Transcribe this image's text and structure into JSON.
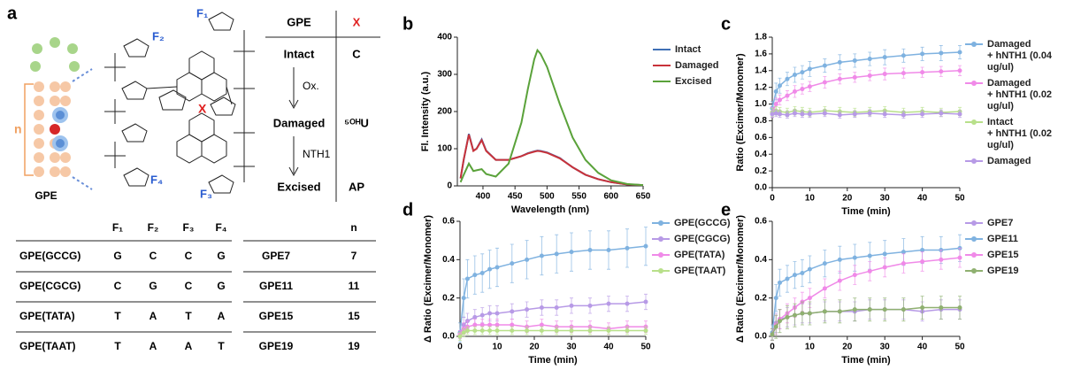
{
  "panel_labels": [
    "a",
    "b",
    "c",
    "d",
    "e"
  ],
  "panel_a": {
    "scheme_labels": {
      "gpe": "GPE",
      "n": "n",
      "f1": "F₁",
      "f2": "F₂",
      "f3": "F₃",
      "f4": "F₄",
      "x": "X"
    },
    "state_table": {
      "header": [
        "GPE",
        "X"
      ],
      "rows": [
        [
          "Intact",
          "C"
        ],
        [
          "Damaged",
          "⁵ᴼᴴU"
        ],
        [
          "Excised",
          "AP"
        ]
      ],
      "steps": [
        "Ox.",
        "NTH1"
      ]
    },
    "sequence_table": {
      "columns": [
        "F₁",
        "F₂",
        "F₃",
        "F₄"
      ],
      "rows": [
        {
          "label": "GPE(GCCG)",
          "cells": [
            "G",
            "C",
            "C",
            "G"
          ]
        },
        {
          "label": "GPE(CGCG)",
          "cells": [
            "C",
            "G",
            "C",
            "G"
          ]
        },
        {
          "label": "GPE(TATA)",
          "cells": [
            "T",
            "A",
            "T",
            "A"
          ]
        },
        {
          "label": "GPE(TAAT)",
          "cells": [
            "T",
            "A",
            "A",
            "T"
          ]
        }
      ]
    },
    "length_table": {
      "column": "n",
      "rows": [
        [
          "GPE7",
          7
        ],
        [
          "GPE11",
          11
        ],
        [
          "GPE15",
          15
        ],
        [
          "GPE19",
          19
        ]
      ]
    }
  },
  "chart_data": [
    {
      "type": "line",
      "x_label": "Wavelength (nm)",
      "y_label": "Fl. Intensity (a.u.)",
      "x": [
        365,
        370,
        378,
        385,
        390,
        398,
        405,
        420,
        440,
        460,
        470,
        480,
        485,
        490,
        500,
        520,
        540,
        560,
        580,
        600,
        625,
        650
      ],
      "xlim": [
        360,
        650
      ],
      "xticks": [
        400,
        450,
        500,
        550,
        600,
        650
      ],
      "ylim": [
        0,
        400
      ],
      "yticks": [
        0,
        100,
        200,
        300,
        400
      ],
      "series": [
        {
          "name": "Intact",
          "color": "#3f6fb5",
          "values": [
            20,
            70,
            140,
            95,
            100,
            125,
            95,
            70,
            70,
            80,
            88,
            93,
            95,
            94,
            90,
            75,
            50,
            30,
            18,
            10,
            4,
            2
          ]
        },
        {
          "name": "Damaged",
          "color": "#c8323a",
          "values": [
            20,
            72,
            138,
            94,
            100,
            123,
            94,
            70,
            70,
            80,
            87,
            92,
            94,
            93,
            89,
            74,
            50,
            30,
            18,
            10,
            4,
            2
          ]
        },
        {
          "name": "Excised",
          "color": "#5aa23a",
          "values": [
            10,
            30,
            60,
            40,
            42,
            45,
            32,
            25,
            60,
            170,
            260,
            340,
            365,
            355,
            320,
            220,
            130,
            70,
            35,
            15,
            5,
            2
          ]
        }
      ]
    },
    {
      "type": "scatter",
      "x_label": "Time (min)",
      "y_label": "Ratio (Excimer/Monomer)",
      "x": [
        0,
        1,
        2,
        4,
        6,
        8,
        10,
        14,
        18,
        22,
        26,
        30,
        35,
        40,
        45,
        50
      ],
      "xlim": [
        0,
        50
      ],
      "xticks": [
        0,
        10,
        20,
        30,
        40,
        50
      ],
      "ylim": [
        0,
        1.8
      ],
      "yticks": [
        {
          "value": 0,
          "label": "0.0"
        },
        0.2,
        0.4,
        0.6,
        0.8,
        {
          "value": 1,
          "label": "1.0"
        },
        1.2,
        1.4,
        1.6,
        1.8
      ],
      "series": [
        {
          "name": "Damaged\n+ hNTH1 (0.04 ug/ul)",
          "color": "#7fb2e0",
          "values": [
            0.95,
            1.15,
            1.22,
            1.3,
            1.35,
            1.38,
            1.42,
            1.46,
            1.5,
            1.52,
            1.54,
            1.56,
            1.58,
            1.6,
            1.61,
            1.62
          ],
          "errors": [
            0.08,
            0.1,
            0.09,
            0.08,
            0.09,
            0.08,
            0.09,
            0.08,
            0.09,
            0.08,
            0.08,
            0.09,
            0.08,
            0.08,
            0.09,
            0.08
          ]
        },
        {
          "name": "Damaged\n+ hNTH1 (0.02 ug/ul)",
          "color": "#f08ae8",
          "values": [
            0.9,
            1.0,
            1.05,
            1.1,
            1.15,
            1.18,
            1.21,
            1.26,
            1.3,
            1.32,
            1.34,
            1.36,
            1.37,
            1.38,
            1.39,
            1.4
          ],
          "errors": [
            0.06,
            0.07,
            0.06,
            0.06,
            0.07,
            0.06,
            0.06,
            0.07,
            0.06,
            0.06,
            0.06,
            0.07,
            0.06,
            0.06,
            0.06,
            0.06
          ]
        },
        {
          "name": "Intact\n+ hNTH1 (0.02 ug/ul)",
          "color": "#b8e08a",
          "values": [
            0.9,
            0.92,
            0.91,
            0.9,
            0.92,
            0.91,
            0.9,
            0.92,
            0.91,
            0.9,
            0.91,
            0.92,
            0.9,
            0.91,
            0.9,
            0.91
          ],
          "errors": [
            0.05,
            0.05,
            0.05,
            0.05,
            0.05,
            0.05,
            0.05,
            0.05,
            0.05,
            0.05,
            0.05,
            0.05,
            0.05,
            0.05,
            0.05,
            0.05
          ]
        },
        {
          "name": "Damaged",
          "color": "#b79ae6",
          "values": [
            0.88,
            0.89,
            0.88,
            0.87,
            0.89,
            0.88,
            0.88,
            0.89,
            0.87,
            0.88,
            0.89,
            0.88,
            0.87,
            0.88,
            0.89,
            0.88
          ],
          "errors": [
            0.04,
            0.04,
            0.04,
            0.04,
            0.04,
            0.04,
            0.04,
            0.04,
            0.04,
            0.04,
            0.04,
            0.04,
            0.04,
            0.04,
            0.04,
            0.04
          ]
        }
      ]
    },
    {
      "type": "scatter",
      "x_label": "Time (min)",
      "y_label": "Δ Ratio (Excimer/Monomer)",
      "x": [
        0,
        1,
        2,
        4,
        6,
        8,
        10,
        14,
        18,
        22,
        26,
        30,
        35,
        40,
        45,
        50
      ],
      "xlim": [
        0,
        50
      ],
      "xticks": [
        0,
        10,
        20,
        30,
        40,
        50
      ],
      "ylim": [
        0,
        0.6
      ],
      "yticks": [
        {
          "value": 0,
          "label": "0.0"
        },
        0.2,
        0.4,
        0.6
      ],
      "series": [
        {
          "name": "GPE(GCCG)",
          "color": "#7fb2e0",
          "values": [
            0.02,
            0.2,
            0.3,
            0.32,
            0.33,
            0.35,
            0.36,
            0.38,
            0.4,
            0.42,
            0.43,
            0.44,
            0.45,
            0.45,
            0.46,
            0.47
          ],
          "errors": [
            0.05,
            0.1,
            0.1,
            0.1,
            0.1,
            0.1,
            0.1,
            0.1,
            0.1,
            0.1,
            0.1,
            0.1,
            0.1,
            0.1,
            0.1,
            0.1
          ]
        },
        {
          "name": "GPE(CGCG)",
          "color": "#b79ae6",
          "values": [
            0.01,
            0.06,
            0.08,
            0.1,
            0.11,
            0.12,
            0.12,
            0.13,
            0.14,
            0.15,
            0.15,
            0.16,
            0.16,
            0.17,
            0.17,
            0.18
          ],
          "errors": [
            0.02,
            0.04,
            0.04,
            0.04,
            0.04,
            0.04,
            0.04,
            0.04,
            0.04,
            0.04,
            0.04,
            0.04,
            0.04,
            0.04,
            0.04,
            0.04
          ]
        },
        {
          "name": "GPE(TATA)",
          "color": "#f08ae8",
          "values": [
            0.01,
            0.04,
            0.05,
            0.06,
            0.06,
            0.06,
            0.06,
            0.06,
            0.05,
            0.06,
            0.05,
            0.05,
            0.05,
            0.04,
            0.05,
            0.05
          ],
          "errors": [
            0.02,
            0.03,
            0.03,
            0.03,
            0.03,
            0.03,
            0.03,
            0.03,
            0.03,
            0.03,
            0.03,
            0.03,
            0.03,
            0.03,
            0.03,
            0.03
          ]
        },
        {
          "name": "GPE(TAAT)",
          "color": "#b8e08a",
          "values": [
            0.0,
            0.02,
            0.03,
            0.03,
            0.03,
            0.03,
            0.03,
            0.03,
            0.03,
            0.03,
            0.03,
            0.03,
            0.03,
            0.03,
            0.03,
            0.03
          ],
          "errors": [
            0.02,
            0.02,
            0.02,
            0.02,
            0.02,
            0.02,
            0.02,
            0.02,
            0.02,
            0.02,
            0.02,
            0.02,
            0.02,
            0.02,
            0.02,
            0.02
          ]
        }
      ]
    },
    {
      "type": "scatter",
      "x_label": "Time (min)",
      "y_label": "Δ Ratio (Excimer/Monomer)",
      "x": [
        0,
        1,
        2,
        4,
        6,
        8,
        10,
        14,
        18,
        22,
        26,
        30,
        35,
        40,
        45,
        50
      ],
      "xlim": [
        0,
        50
      ],
      "xticks": [
        0,
        10,
        20,
        30,
        40,
        50
      ],
      "ylim": [
        0,
        0.6
      ],
      "yticks": [
        {
          "value": 0,
          "label": "0.0"
        },
        0.2,
        0.4,
        0.6
      ],
      "series": [
        {
          "name": "GPE7",
          "color": "#b79ae6",
          "values": [
            0.01,
            0.07,
            0.09,
            0.1,
            0.11,
            0.12,
            0.12,
            0.13,
            0.13,
            0.13,
            0.14,
            0.14,
            0.14,
            0.13,
            0.14,
            0.14
          ],
          "errors": [
            0.03,
            0.05,
            0.05,
            0.05,
            0.05,
            0.05,
            0.05,
            0.05,
            0.05,
            0.05,
            0.05,
            0.05,
            0.05,
            0.05,
            0.05,
            0.05
          ]
        },
        {
          "name": "GPE11",
          "color": "#7fb2e0",
          "values": [
            0.02,
            0.2,
            0.28,
            0.3,
            0.32,
            0.33,
            0.35,
            0.38,
            0.4,
            0.41,
            0.42,
            0.43,
            0.44,
            0.45,
            0.45,
            0.46
          ],
          "errors": [
            0.04,
            0.07,
            0.07,
            0.07,
            0.07,
            0.07,
            0.07,
            0.07,
            0.07,
            0.07,
            0.07,
            0.07,
            0.07,
            0.07,
            0.07,
            0.07
          ]
        },
        {
          "name": "GPE15",
          "color": "#f08ae8",
          "values": [
            0.01,
            0.06,
            0.09,
            0.12,
            0.15,
            0.18,
            0.2,
            0.25,
            0.29,
            0.32,
            0.34,
            0.36,
            0.38,
            0.39,
            0.4,
            0.41
          ],
          "errors": [
            0.03,
            0.05,
            0.05,
            0.05,
            0.05,
            0.05,
            0.05,
            0.05,
            0.05,
            0.05,
            0.05,
            0.05,
            0.05,
            0.05,
            0.05,
            0.05
          ]
        },
        {
          "name": "GPE19",
          "color": "#8fb070",
          "values": [
            0.01,
            0.05,
            0.08,
            0.1,
            0.11,
            0.12,
            0.12,
            0.13,
            0.13,
            0.14,
            0.14,
            0.14,
            0.14,
            0.15,
            0.15,
            0.15
          ],
          "errors": [
            0.03,
            0.06,
            0.06,
            0.06,
            0.06,
            0.06,
            0.06,
            0.06,
            0.06,
            0.06,
            0.06,
            0.06,
            0.06,
            0.06,
            0.06,
            0.06
          ]
        }
      ]
    }
  ]
}
